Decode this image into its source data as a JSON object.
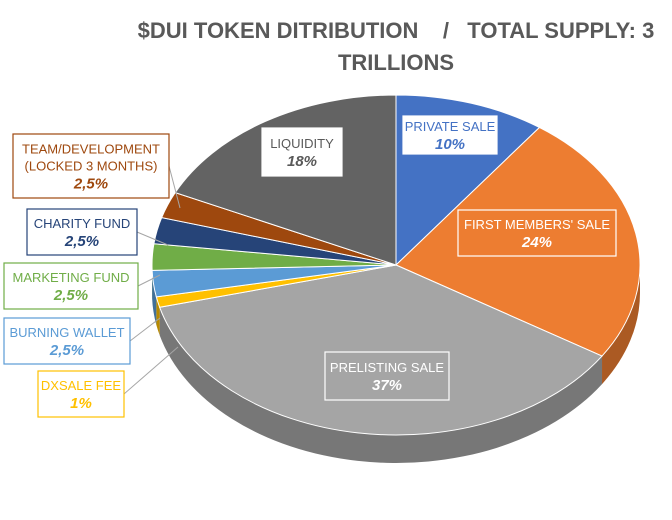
{
  "chart_data": {
    "type": "pie",
    "title_line1": "$DUI TOKEN DITRIBUTION    /   TOTAL SUPPLY: 3",
    "title_line2": "TRILLIONS",
    "slices": [
      {
        "name": "PRIVATE SALE",
        "value_label": "10%",
        "value": 10,
        "color": "#4472C4"
      },
      {
        "name": "FIRST MEMBERS' SALE",
        "value_label": "24%",
        "value": 24,
        "color": "#ED7D31"
      },
      {
        "name": "PRELISTING SALE",
        "value_label": "37%",
        "value": 37,
        "color": "#A5A5A5"
      },
      {
        "name": "DXSALE FEE",
        "value_label": "1%",
        "value": 1,
        "color": "#FFC000"
      },
      {
        "name": "BURNING WALLET",
        "value_label": "2,5%",
        "value": 2.5,
        "color": "#5B9BD5"
      },
      {
        "name": "MARKETING FUND",
        "value_label": "2,5%",
        "value": 2.5,
        "color": "#70AD47"
      },
      {
        "name": "CHARITY FUND",
        "value_label": "2,5%",
        "value": 2.5,
        "color": "#264478"
      },
      {
        "name": "TEAM/DEVELOPMENT\n(LOCKED 3 MONTHS)",
        "value_label": "2,5%",
        "value": 2.5,
        "color": "#9E480E"
      },
      {
        "name": "LIQUIDITY",
        "value_label": "18%",
        "value": 18,
        "color": "#636363"
      }
    ]
  }
}
